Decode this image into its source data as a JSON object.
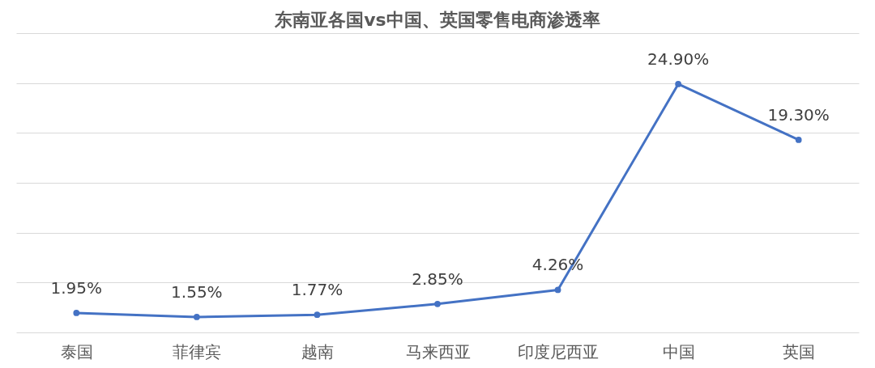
{
  "chart_data": {
    "type": "line",
    "title": "东南亚各国vs中国、英国零售电商渗透率",
    "categories": [
      "泰国",
      "菲律宾",
      "越南",
      "马来西亚",
      "印度尼西亚",
      "中国",
      "英国"
    ],
    "series": [
      {
        "color": "#4472c4",
        "values": [
          1.95,
          1.55,
          1.77,
          2.85,
          4.26,
          24.9,
          19.3
        ],
        "value_labels": [
          "1.95%",
          "1.55%",
          "1.77%",
          "2.85%",
          "4.26%",
          "24.90%",
          "19.30%"
        ]
      }
    ],
    "ylim": [
      0,
      30
    ],
    "yticks": [
      {
        "value": 0,
        "label": null
      },
      {
        "value": 5,
        "label": null
      },
      {
        "value": 10,
        "label": null
      },
      {
        "value": 15,
        "label": null
      },
      {
        "value": 20,
        "label": null
      },
      {
        "value": 25,
        "label": null
      },
      {
        "value": 30,
        "label": null
      }
    ],
    "tick_labels": "x",
    "grid": "y",
    "marker": "circle",
    "line_style": "solid"
  }
}
